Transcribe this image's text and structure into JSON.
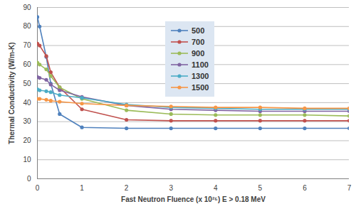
{
  "chart_data": {
    "type": "line",
    "x_label": "Fast Neutron Fluence (x 10²⁵) E > 0.18 MeV",
    "y_label": "Thermal Conductivity (W/m-K)",
    "x": [
      0,
      0.05,
      0.2,
      0.3,
      0.5,
      1,
      2,
      3,
      4,
      5,
      6,
      7
    ],
    "series": [
      {
        "name": "500",
        "color": "#4f81bd",
        "values": [
          85,
          80,
          64,
          50,
          34,
          27,
          26.5,
          26.5,
          26.5,
          26.5,
          26.5,
          26.5
        ]
      },
      {
        "name": "700",
        "color": "#c0504d",
        "values": [
          71,
          70,
          64.5,
          56,
          48,
          36.5,
          31,
          30.5,
          30.5,
          30.5,
          30.5,
          30.5
        ]
      },
      {
        "name": "900",
        "color": "#9bbb59",
        "values": [
          61,
          60,
          57.5,
          54,
          48,
          42,
          36,
          34,
          33.5,
          33.5,
          33.5,
          33
        ]
      },
      {
        "name": "1100",
        "color": "#8064a2",
        "values": [
          53.5,
          53,
          52,
          49.5,
          46.5,
          43,
          38.5,
          36.5,
          36,
          35.5,
          35.5,
          35.5
        ]
      },
      {
        "name": "1300",
        "color": "#4bacc6",
        "values": [
          47,
          46.5,
          46,
          45.5,
          44,
          42.5,
          39,
          37.5,
          37,
          36.5,
          36.5,
          36.5
        ]
      },
      {
        "name": "1500",
        "color": "#f79646",
        "values": [
          42,
          42,
          41.5,
          41,
          40.5,
          39.5,
          38.5,
          38,
          37.5,
          37.5,
          37,
          37
        ]
      }
    ],
    "xlim": [
      0,
      7
    ],
    "xticks": [
      0,
      1,
      2,
      3,
      4,
      5,
      6,
      7
    ],
    "ylim": [
      0,
      90
    ],
    "yticks": [
      0,
      10,
      20,
      30,
      40,
      50,
      60,
      70,
      80,
      90
    ],
    "grid": true,
    "marker": "circle",
    "legend": "top"
  }
}
